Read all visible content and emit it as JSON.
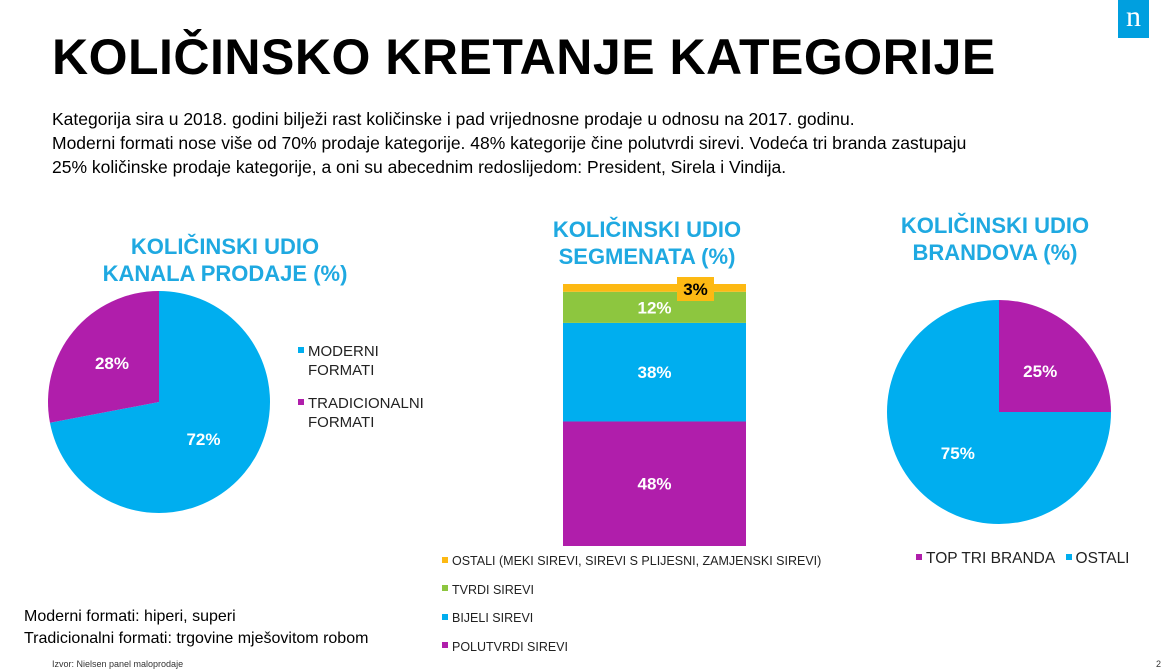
{
  "logo_text": "n",
  "title": "KOLIČINSKO KRETANJE KATEGORIJE",
  "intro": [
    "Kategorija sira u 2018. godini bilježi rast količinske i pad vrijednosne prodaje u odnosu na 2017. godinu.",
    "Moderni formati nose više od 70% prodaje kategorije. 48% kategorije čine polutvrdi sirevi. Vodeća tri branda zastupaju",
    "25% količinske prodaje kategorije, a oni su abecednim redoslijedom: President, Sirela i Vindija."
  ],
  "notes": [
    "Moderni formati: hiperi, superi",
    "Tradicionalni formati: trgovine mješovitom robom"
  ],
  "source": "Izvor: Nielsen panel maloprodaje",
  "page_number": "2",
  "chart_data": [
    {
      "type": "pie",
      "title_lines": [
        "KOLIČINSKI UDIO",
        "KANALA PRODAJE (%)"
      ],
      "slices": [
        {
          "name": "MODERNI FORMATI",
          "value": 72,
          "label": "72%",
          "color": "#00aeef"
        },
        {
          "name": "TRADICIONALNI FORMATI",
          "value": 28,
          "label": "28%",
          "color": "#b01eab"
        }
      ],
      "legend_lines": [
        [
          "MODERNI",
          "FORMATI"
        ],
        [
          "TRADICIONALNI",
          "FORMATI"
        ]
      ],
      "legend_position": "right"
    },
    {
      "type": "bar",
      "stacked": true,
      "title_lines": [
        "KOLIČINSKI UDIO",
        "SEGMENATA (%)"
      ],
      "ylim": [
        0,
        100
      ],
      "series": [
        {
          "name": "POLUTVRDI SIREVI",
          "value": 48,
          "label": "48%",
          "color": "#b01eab"
        },
        {
          "name": "BIJELI SIREVI",
          "value": 38,
          "label": "38%",
          "color": "#00aeef"
        },
        {
          "name": "TVRDI SIREVI",
          "value": 12,
          "label": "12%",
          "color": "#8dc63f"
        },
        {
          "name": "OSTALI (MEKI SIREVI, SIREVI S PLIJESNI, ZAMJENSKI SIREVI)",
          "value": 3,
          "label": "3%",
          "color": "#fdb913"
        }
      ],
      "legend_position": "bottom"
    },
    {
      "type": "pie",
      "title_lines": [
        "KOLIČINSKI UDIO",
        "BRANDOVA (%)"
      ],
      "slices": [
        {
          "name": "TOP TRI BRANDA",
          "value": 25,
          "label": "25%",
          "color": "#b01eab"
        },
        {
          "name": "OSTALI",
          "value": 75,
          "label": "75%",
          "color": "#00aeef"
        }
      ],
      "legend_position": "bottom"
    }
  ]
}
